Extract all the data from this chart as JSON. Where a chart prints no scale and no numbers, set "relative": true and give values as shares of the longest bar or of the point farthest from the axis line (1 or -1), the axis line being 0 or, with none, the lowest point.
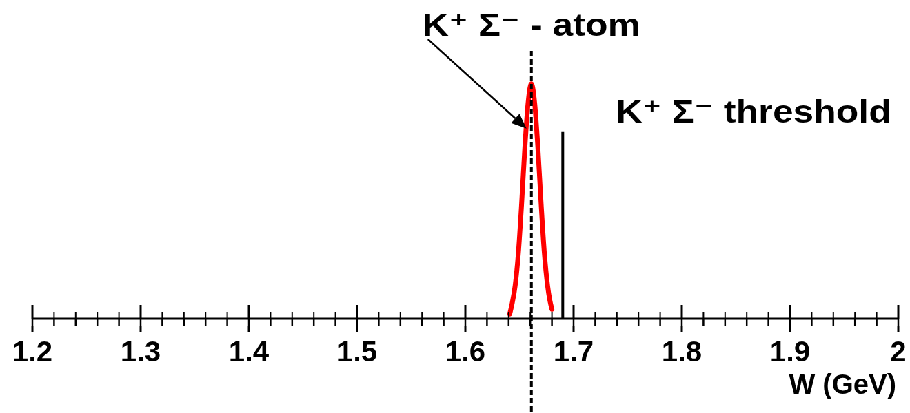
{
  "chart_data": {
    "type": "line",
    "xlabel": "W (GeV)",
    "xlim": [
      1.2,
      2
    ],
    "xticks": [
      1.2,
      {
        "value": 1.22,
        "label": null
      },
      {
        "value": 1.24,
        "label": null
      },
      {
        "value": 1.26,
        "label": null
      },
      {
        "value": 1.28,
        "label": null
      },
      1.3,
      {
        "value": 1.32,
        "label": null
      },
      {
        "value": 1.34,
        "label": null
      },
      {
        "value": 1.36,
        "label": null
      },
      {
        "value": 1.38,
        "label": null
      },
      1.4,
      {
        "value": 1.42,
        "label": null
      },
      {
        "value": 1.44,
        "label": null
      },
      {
        "value": 1.46,
        "label": null
      },
      {
        "value": 1.48,
        "label": null
      },
      1.5,
      {
        "value": 1.52,
        "label": null
      },
      {
        "value": 1.54,
        "label": null
      },
      {
        "value": 1.56,
        "label": null
      },
      {
        "value": 1.58,
        "label": null
      },
      1.6,
      {
        "value": 1.62,
        "label": null
      },
      {
        "value": 1.64,
        "label": null
      },
      {
        "value": 1.66,
        "label": null
      },
      {
        "value": 1.68,
        "label": null
      },
      1.7,
      {
        "value": 1.72,
        "label": null
      },
      {
        "value": 1.74,
        "label": null
      },
      {
        "value": 1.76,
        "label": null
      },
      {
        "value": 1.78,
        "label": null
      },
      1.8,
      {
        "value": 1.82,
        "label": null
      },
      {
        "value": 1.84,
        "label": null
      },
      {
        "value": 1.86,
        "label": null
      },
      {
        "value": 1.88,
        "label": null
      },
      1.9,
      {
        "value": 1.92,
        "label": null
      },
      {
        "value": 1.94,
        "label": null
      },
      {
        "value": 1.96,
        "label": null
      },
      {
        "value": 1.98,
        "label": null
      },
      2
    ],
    "relative": true,
    "marker": "none",
    "line_style": "solid",
    "series": [
      {
        "color": "#ff0000",
        "x": [
          1.641,
          1.643,
          1.646,
          1.649,
          1.652,
          1.655,
          1.658,
          1.661,
          1.664,
          1.667,
          1.67,
          1.673,
          1.676,
          1.678,
          1.68
        ],
        "values": [
          0.02,
          0.06,
          0.14,
          0.28,
          0.49,
          0.73,
          0.92,
          1,
          0.92,
          0.73,
          0.49,
          0.28,
          0.14,
          0.08,
          0.04
        ]
      }
    ],
    "ref_lines": [
      {
        "axis": "x",
        "value": 1.661,
        "label": "K⁺ Σ⁻ - atom",
        "color": "#000000",
        "line_style": "dotted"
      },
      {
        "axis": "x",
        "value": 1.69,
        "label": "K⁺ Σ⁻ threshold",
        "color": "#000000",
        "line_style": "solid"
      }
    ]
  }
}
